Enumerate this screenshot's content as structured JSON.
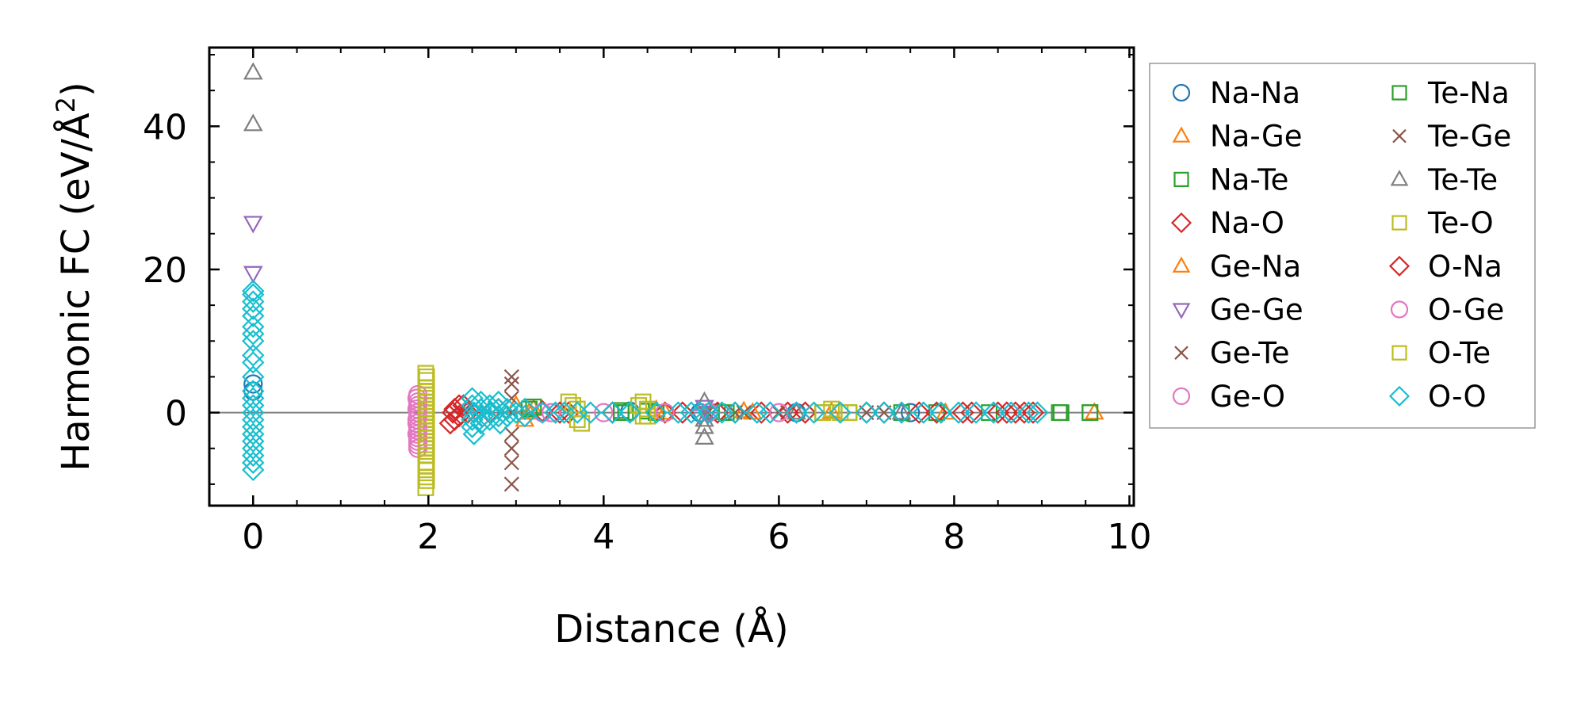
{
  "chart_data": {
    "type": "scatter",
    "title": "",
    "xlabel": "Distance (Å)",
    "ylabel": "Harmonic FC (eV/Å²)",
    "ylabel_parts": {
      "main": "Harmonic FC (eV/Å",
      "sup": "2",
      "close": ")"
    },
    "xlim": [
      -0.5,
      10.05
    ],
    "ylim": [
      -13,
      51
    ],
    "xticks": [
      0,
      2,
      4,
      6,
      8,
      10
    ],
    "yticks": [
      0,
      20,
      40
    ],
    "xminor_step": 0.5,
    "yminor_step": 5,
    "zero_line": true,
    "legend_position": "outside-right",
    "series": [
      {
        "name": "Na-Na",
        "marker": "circle",
        "color": "#1f77b4",
        "points": [
          [
            0,
            4
          ],
          [
            0,
            3
          ],
          [
            4.3,
            0.2
          ],
          [
            5.1,
            0
          ],
          [
            6.2,
            0
          ],
          [
            7.5,
            0
          ]
        ]
      },
      {
        "name": "Na-Ge",
        "marker": "triangle-up",
        "color": "#ff7f0e",
        "points": [
          [
            3.1,
            -1
          ],
          [
            3.2,
            0.5
          ],
          [
            4.6,
            0.4
          ],
          [
            5.6,
            0.2
          ],
          [
            6.6,
            0.1
          ],
          [
            7.9,
            0
          ],
          [
            9.6,
            0
          ]
        ]
      },
      {
        "name": "Na-Te",
        "marker": "square",
        "color": "#2ca02c",
        "points": [
          [
            3.2,
            0.8
          ],
          [
            4.2,
            0.3
          ],
          [
            4.25,
            0
          ],
          [
            4.5,
            0.2
          ],
          [
            5.3,
            0.1
          ],
          [
            6.8,
            0
          ],
          [
            7.4,
            0
          ],
          [
            8.4,
            0
          ],
          [
            9.2,
            0
          ],
          [
            9.55,
            0
          ]
        ]
      },
      {
        "name": "Na-O",
        "marker": "diamond",
        "color": "#d62728",
        "points": [
          [
            2.25,
            -1.5
          ],
          [
            2.3,
            0.5
          ],
          [
            2.35,
            -0.5
          ],
          [
            2.4,
            1
          ],
          [
            2.45,
            0
          ],
          [
            2.8,
            0.5
          ],
          [
            3.3,
            0.2
          ],
          [
            3.6,
            0
          ],
          [
            4.1,
            0
          ],
          [
            4.7,
            0
          ],
          [
            5.3,
            0
          ],
          [
            5.8,
            0
          ],
          [
            6.3,
            0
          ],
          [
            7.2,
            0
          ],
          [
            7.6,
            0
          ],
          [
            8.1,
            0
          ],
          [
            8.5,
            0
          ],
          [
            8.7,
            0
          ],
          [
            8.9,
            0
          ]
        ]
      },
      {
        "name": "Ge-Na",
        "marker": "triangle-up",
        "color": "#ff7f0e",
        "points": [
          [
            3.0,
            1
          ],
          [
            3.15,
            0
          ],
          [
            4.7,
            0
          ],
          [
            5.7,
            0
          ]
        ]
      },
      {
        "name": "Ge-Ge",
        "marker": "triangle-down",
        "color": "#9467bd",
        "points": [
          [
            0,
            26.5
          ],
          [
            0,
            19.5
          ],
          [
            5.15,
            0.8
          ],
          [
            5.1,
            -0.5
          ],
          [
            5.2,
            0
          ]
        ]
      },
      {
        "name": "Ge-Te",
        "marker": "x",
        "color": "#8c564b",
        "points": [
          [
            2.95,
            5
          ],
          [
            2.95,
            2
          ],
          [
            2.95,
            -5
          ],
          [
            2.95,
            -7
          ],
          [
            2.95,
            -10
          ],
          [
            5.5,
            0
          ],
          [
            6.1,
            0
          ],
          [
            7.0,
            0
          ]
        ]
      },
      {
        "name": "Ge-O",
        "marker": "circle",
        "color": "#e377c2",
        "points": [
          [
            1.87,
            2
          ],
          [
            1.88,
            1
          ],
          [
            1.88,
            0
          ],
          [
            1.87,
            -1
          ],
          [
            1.88,
            -2
          ],
          [
            1.87,
            -3
          ],
          [
            1.88,
            -4
          ],
          [
            1.88,
            -5
          ],
          [
            3.4,
            0
          ],
          [
            4.0,
            0
          ],
          [
            5.2,
            0
          ]
        ]
      },
      {
        "name": "Te-Na",
        "marker": "square",
        "color": "#2ca02c",
        "points": [
          [
            3.15,
            0.5
          ],
          [
            4.2,
            0
          ],
          [
            4.6,
            0
          ],
          [
            5.4,
            0
          ],
          [
            6.5,
            0
          ],
          [
            7.8,
            0
          ],
          [
            9.22,
            0
          ],
          [
            9.55,
            0
          ]
        ]
      },
      {
        "name": "Te-Ge",
        "marker": "x",
        "color": "#8c564b",
        "points": [
          [
            2.95,
            4
          ],
          [
            2.95,
            0
          ],
          [
            2.95,
            -3
          ],
          [
            5.6,
            0
          ],
          [
            6.0,
            0
          ],
          [
            7.2,
            0
          ]
        ]
      },
      {
        "name": "Te-Te",
        "marker": "triangle-up",
        "color": "#7f7f7f",
        "points": [
          [
            0,
            47.5
          ],
          [
            0,
            40.3
          ],
          [
            5.15,
            1.5
          ],
          [
            5.15,
            -1
          ],
          [
            5.15,
            -2
          ],
          [
            5.15,
            -3.5
          ],
          [
            6.2,
            0
          ],
          [
            7.4,
            0
          ]
        ]
      },
      {
        "name": "Te-O",
        "marker": "square",
        "color": "#bcbd22",
        "points": [
          [
            1.97,
            5.5
          ],
          [
            1.97,
            4.5
          ],
          [
            1.97,
            3
          ],
          [
            1.97,
            2
          ],
          [
            1.97,
            1
          ],
          [
            1.97,
            0
          ],
          [
            1.97,
            -1
          ],
          [
            1.97,
            -2
          ],
          [
            1.97,
            -3
          ],
          [
            1.97,
            -4
          ],
          [
            1.97,
            -5
          ],
          [
            1.97,
            -6
          ],
          [
            1.97,
            -7
          ],
          [
            1.97,
            -8
          ],
          [
            1.97,
            -9
          ],
          [
            1.97,
            -10.5
          ],
          [
            3.6,
            1.5
          ],
          [
            3.7,
            0.5
          ],
          [
            3.75,
            -1.5
          ],
          [
            4.4,
            1
          ],
          [
            4.5,
            0.5
          ],
          [
            4.45,
            -0.5
          ],
          [
            6.5,
            0
          ],
          [
            6.8,
            0
          ]
        ]
      },
      {
        "name": "O-Na",
        "marker": "diamond",
        "color": "#d62728",
        "points": [
          [
            2.28,
            0
          ],
          [
            2.35,
            1
          ],
          [
            2.3,
            -1
          ],
          [
            2.7,
            0
          ],
          [
            3.5,
            0
          ],
          [
            4.1,
            0
          ],
          [
            4.9,
            0
          ],
          [
            5.5,
            0
          ],
          [
            6.1,
            0
          ],
          [
            7.0,
            0
          ],
          [
            7.8,
            0
          ],
          [
            8.2,
            0
          ],
          [
            8.6,
            0
          ],
          [
            8.8,
            0
          ]
        ]
      },
      {
        "name": "O-Ge",
        "marker": "circle",
        "color": "#e377c2",
        "points": [
          [
            1.88,
            2.5
          ],
          [
            1.88,
            1.5
          ],
          [
            1.87,
            0.5
          ],
          [
            1.88,
            -0.5
          ],
          [
            1.87,
            -1.5
          ],
          [
            1.88,
            -2.5
          ],
          [
            1.88,
            -3.5
          ],
          [
            1.88,
            -4.5
          ],
          [
            3.3,
            0
          ],
          [
            4.7,
            0
          ],
          [
            6.0,
            0
          ]
        ]
      },
      {
        "name": "O-Te",
        "marker": "square",
        "color": "#bcbd22",
        "points": [
          [
            1.98,
            5
          ],
          [
            1.98,
            3.5
          ],
          [
            1.98,
            2.5
          ],
          [
            1.98,
            1.5
          ],
          [
            1.98,
            0.5
          ],
          [
            1.98,
            -0.5
          ],
          [
            1.98,
            -1.5
          ],
          [
            1.98,
            -2.5
          ],
          [
            1.98,
            -3.5
          ],
          [
            1.98,
            -4.5
          ],
          [
            1.98,
            -6
          ],
          [
            1.98,
            -7.5
          ],
          [
            1.98,
            -9.5
          ],
          [
            3.65,
            1
          ],
          [
            3.7,
            -1
          ],
          [
            4.45,
            1.5
          ],
          [
            4.5,
            -0.5
          ],
          [
            6.6,
            0.5
          ],
          [
            6.7,
            0
          ],
          [
            6.8,
            0
          ]
        ]
      },
      {
        "name": "O-O",
        "marker": "diamond",
        "color": "#17becf",
        "points": [
          [
            0,
            17
          ],
          [
            0,
            16.5
          ],
          [
            0,
            15.5
          ],
          [
            0,
            14.5
          ],
          [
            0,
            13.5
          ],
          [
            0,
            12
          ],
          [
            0,
            11
          ],
          [
            0,
            10
          ],
          [
            0,
            8
          ],
          [
            0,
            7
          ],
          [
            0,
            5
          ],
          [
            0,
            3
          ],
          [
            0,
            2
          ],
          [
            0,
            1
          ],
          [
            0,
            0
          ],
          [
            0,
            -1
          ],
          [
            0,
            -2
          ],
          [
            0,
            -3
          ],
          [
            0,
            -4
          ],
          [
            0,
            -5
          ],
          [
            0,
            -6
          ],
          [
            0,
            -7
          ],
          [
            0,
            -8
          ],
          [
            2.5,
            2
          ],
          [
            2.5,
            1
          ],
          [
            2.52,
            0
          ],
          [
            2.5,
            -1
          ],
          [
            2.5,
            -2
          ],
          [
            2.52,
            -3
          ],
          [
            2.6,
            1.5
          ],
          [
            2.6,
            0.5
          ],
          [
            2.62,
            -0.5
          ],
          [
            2.6,
            -1.5
          ],
          [
            2.7,
            1
          ],
          [
            2.72,
            0
          ],
          [
            2.7,
            -1
          ],
          [
            2.8,
            1.5
          ],
          [
            2.8,
            0.5
          ],
          [
            2.8,
            -0.5
          ],
          [
            2.82,
            -1.5
          ],
          [
            2.9,
            0.5
          ],
          [
            2.9,
            -0.5
          ],
          [
            3.0,
            0
          ],
          [
            3.1,
            0.5
          ],
          [
            3.1,
            -0.5
          ],
          [
            3.3,
            0
          ],
          [
            3.45,
            0
          ],
          [
            3.55,
            0
          ],
          [
            3.7,
            0
          ],
          [
            3.85,
            0
          ],
          [
            4.1,
            0
          ],
          [
            4.3,
            0
          ],
          [
            4.6,
            0
          ],
          [
            4.85,
            0
          ],
          [
            5.0,
            0
          ],
          [
            5.1,
            0
          ],
          [
            5.2,
            0
          ],
          [
            5.35,
            0
          ],
          [
            5.5,
            0
          ],
          [
            5.75,
            0
          ],
          [
            5.9,
            0
          ],
          [
            6.2,
            0
          ],
          [
            6.4,
            0
          ],
          [
            6.7,
            0
          ],
          [
            7.0,
            0
          ],
          [
            7.2,
            0
          ],
          [
            7.4,
            0
          ],
          [
            7.65,
            0
          ],
          [
            7.85,
            0
          ],
          [
            8.05,
            0
          ],
          [
            8.25,
            0
          ],
          [
            8.45,
            0
          ],
          [
            8.65,
            0
          ],
          [
            8.85,
            0
          ],
          [
            8.95,
            0
          ]
        ]
      }
    ]
  }
}
